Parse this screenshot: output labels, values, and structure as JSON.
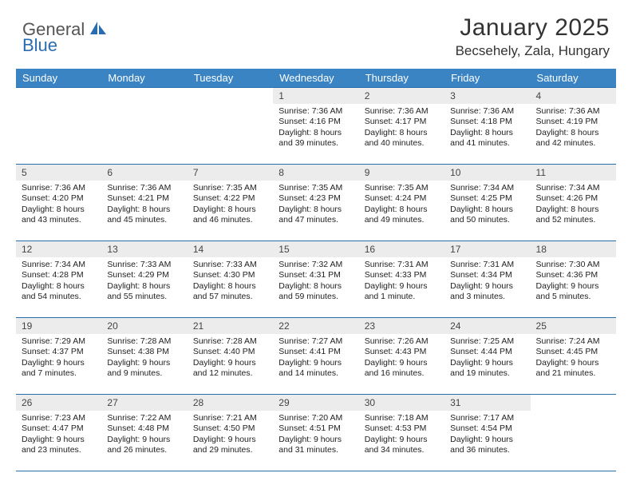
{
  "brand": {
    "word1": "General",
    "word2": "Blue"
  },
  "title": "January 2025",
  "location": "Becsehely, Zala, Hungary",
  "calendar": {
    "header_bg": "#3b84c4",
    "header_fg": "#ffffff",
    "daynum_bg": "#ececec",
    "rule_color": "#2a6cb0",
    "day_headers": [
      "Sunday",
      "Monday",
      "Tuesday",
      "Wednesday",
      "Thursday",
      "Friday",
      "Saturday"
    ],
    "weeks": [
      [
        {
          "n": "",
          "lines": [
            "",
            "",
            "",
            ""
          ]
        },
        {
          "n": "",
          "lines": [
            "",
            "",
            "",
            ""
          ]
        },
        {
          "n": "",
          "lines": [
            "",
            "",
            "",
            ""
          ]
        },
        {
          "n": "1",
          "lines": [
            "Sunrise: 7:36 AM",
            "Sunset: 4:16 PM",
            "Daylight: 8 hours",
            "and 39 minutes."
          ]
        },
        {
          "n": "2",
          "lines": [
            "Sunrise: 7:36 AM",
            "Sunset: 4:17 PM",
            "Daylight: 8 hours",
            "and 40 minutes."
          ]
        },
        {
          "n": "3",
          "lines": [
            "Sunrise: 7:36 AM",
            "Sunset: 4:18 PM",
            "Daylight: 8 hours",
            "and 41 minutes."
          ]
        },
        {
          "n": "4",
          "lines": [
            "Sunrise: 7:36 AM",
            "Sunset: 4:19 PM",
            "Daylight: 8 hours",
            "and 42 minutes."
          ]
        }
      ],
      [
        {
          "n": "5",
          "lines": [
            "Sunrise: 7:36 AM",
            "Sunset: 4:20 PM",
            "Daylight: 8 hours",
            "and 43 minutes."
          ]
        },
        {
          "n": "6",
          "lines": [
            "Sunrise: 7:36 AM",
            "Sunset: 4:21 PM",
            "Daylight: 8 hours",
            "and 45 minutes."
          ]
        },
        {
          "n": "7",
          "lines": [
            "Sunrise: 7:35 AM",
            "Sunset: 4:22 PM",
            "Daylight: 8 hours",
            "and 46 minutes."
          ]
        },
        {
          "n": "8",
          "lines": [
            "Sunrise: 7:35 AM",
            "Sunset: 4:23 PM",
            "Daylight: 8 hours",
            "and 47 minutes."
          ]
        },
        {
          "n": "9",
          "lines": [
            "Sunrise: 7:35 AM",
            "Sunset: 4:24 PM",
            "Daylight: 8 hours",
            "and 49 minutes."
          ]
        },
        {
          "n": "10",
          "lines": [
            "Sunrise: 7:34 AM",
            "Sunset: 4:25 PM",
            "Daylight: 8 hours",
            "and 50 minutes."
          ]
        },
        {
          "n": "11",
          "lines": [
            "Sunrise: 7:34 AM",
            "Sunset: 4:26 PM",
            "Daylight: 8 hours",
            "and 52 minutes."
          ]
        }
      ],
      [
        {
          "n": "12",
          "lines": [
            "Sunrise: 7:34 AM",
            "Sunset: 4:28 PM",
            "Daylight: 8 hours",
            "and 54 minutes."
          ]
        },
        {
          "n": "13",
          "lines": [
            "Sunrise: 7:33 AM",
            "Sunset: 4:29 PM",
            "Daylight: 8 hours",
            "and 55 minutes."
          ]
        },
        {
          "n": "14",
          "lines": [
            "Sunrise: 7:33 AM",
            "Sunset: 4:30 PM",
            "Daylight: 8 hours",
            "and 57 minutes."
          ]
        },
        {
          "n": "15",
          "lines": [
            "Sunrise: 7:32 AM",
            "Sunset: 4:31 PM",
            "Daylight: 8 hours",
            "and 59 minutes."
          ]
        },
        {
          "n": "16",
          "lines": [
            "Sunrise: 7:31 AM",
            "Sunset: 4:33 PM",
            "Daylight: 9 hours",
            "and 1 minute."
          ]
        },
        {
          "n": "17",
          "lines": [
            "Sunrise: 7:31 AM",
            "Sunset: 4:34 PM",
            "Daylight: 9 hours",
            "and 3 minutes."
          ]
        },
        {
          "n": "18",
          "lines": [
            "Sunrise: 7:30 AM",
            "Sunset: 4:36 PM",
            "Daylight: 9 hours",
            "and 5 minutes."
          ]
        }
      ],
      [
        {
          "n": "19",
          "lines": [
            "Sunrise: 7:29 AM",
            "Sunset: 4:37 PM",
            "Daylight: 9 hours",
            "and 7 minutes."
          ]
        },
        {
          "n": "20",
          "lines": [
            "Sunrise: 7:28 AM",
            "Sunset: 4:38 PM",
            "Daylight: 9 hours",
            "and 9 minutes."
          ]
        },
        {
          "n": "21",
          "lines": [
            "Sunrise: 7:28 AM",
            "Sunset: 4:40 PM",
            "Daylight: 9 hours",
            "and 12 minutes."
          ]
        },
        {
          "n": "22",
          "lines": [
            "Sunrise: 7:27 AM",
            "Sunset: 4:41 PM",
            "Daylight: 9 hours",
            "and 14 minutes."
          ]
        },
        {
          "n": "23",
          "lines": [
            "Sunrise: 7:26 AM",
            "Sunset: 4:43 PM",
            "Daylight: 9 hours",
            "and 16 minutes."
          ]
        },
        {
          "n": "24",
          "lines": [
            "Sunrise: 7:25 AM",
            "Sunset: 4:44 PM",
            "Daylight: 9 hours",
            "and 19 minutes."
          ]
        },
        {
          "n": "25",
          "lines": [
            "Sunrise: 7:24 AM",
            "Sunset: 4:45 PM",
            "Daylight: 9 hours",
            "and 21 minutes."
          ]
        }
      ],
      [
        {
          "n": "26",
          "lines": [
            "Sunrise: 7:23 AM",
            "Sunset: 4:47 PM",
            "Daylight: 9 hours",
            "and 23 minutes."
          ]
        },
        {
          "n": "27",
          "lines": [
            "Sunrise: 7:22 AM",
            "Sunset: 4:48 PM",
            "Daylight: 9 hours",
            "and 26 minutes."
          ]
        },
        {
          "n": "28",
          "lines": [
            "Sunrise: 7:21 AM",
            "Sunset: 4:50 PM",
            "Daylight: 9 hours",
            "and 29 minutes."
          ]
        },
        {
          "n": "29",
          "lines": [
            "Sunrise: 7:20 AM",
            "Sunset: 4:51 PM",
            "Daylight: 9 hours",
            "and 31 minutes."
          ]
        },
        {
          "n": "30",
          "lines": [
            "Sunrise: 7:18 AM",
            "Sunset: 4:53 PM",
            "Daylight: 9 hours",
            "and 34 minutes."
          ]
        },
        {
          "n": "31",
          "lines": [
            "Sunrise: 7:17 AM",
            "Sunset: 4:54 PM",
            "Daylight: 9 hours",
            "and 36 minutes."
          ]
        },
        {
          "n": "",
          "lines": [
            "",
            "",
            "",
            ""
          ]
        }
      ]
    ]
  }
}
